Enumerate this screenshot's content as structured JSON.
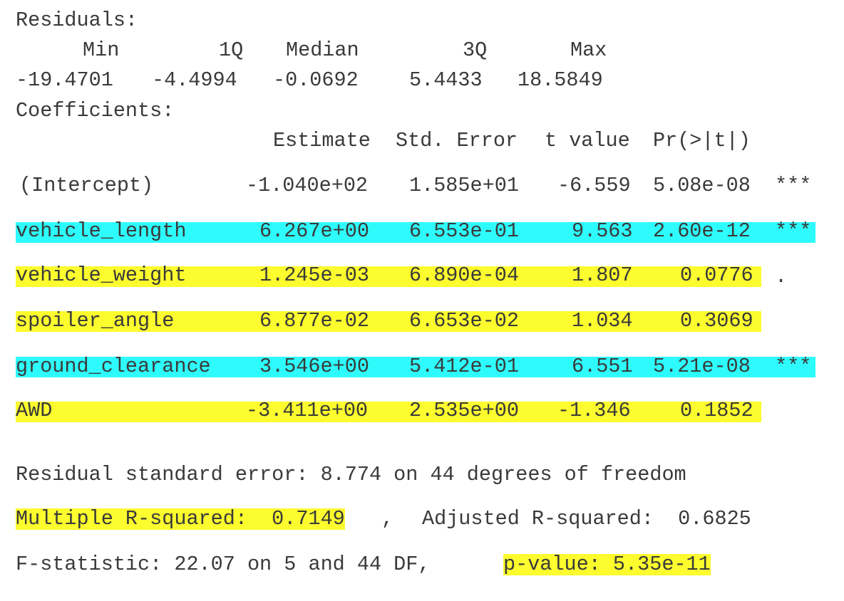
{
  "residuals": {
    "title": "Residuals:",
    "headers": [
      "Min",
      "1Q",
      "Median",
      "3Q",
      "Max"
    ],
    "values": [
      "-19.4701",
      "-4.4994",
      "-0.0692",
      "5.4433",
      "18.5849"
    ]
  },
  "coefficients": {
    "title": "Coefficients:",
    "headers": [
      "Estimate",
      "Std. Error",
      "t value",
      "Pr(>|t|)"
    ],
    "rows": [
      {
        "name": "(Intercept)",
        "estimate": "-1.040e+02",
        "std_error": "1.585e+01",
        "t_value": "-6.559",
        "p": "5.08e-08",
        "signif": "***",
        "highlight": "none"
      },
      {
        "name": "vehicle_length",
        "estimate": "6.267e+00",
        "std_error": "6.553e-01",
        "t_value": "9.563",
        "p": "2.60e-12",
        "signif": "***",
        "highlight": "cyan"
      },
      {
        "name": "vehicle_weight",
        "estimate": "1.245e-03",
        "std_error": "6.890e-04",
        "t_value": "1.807",
        "p": "0.0776",
        "signif": ".",
        "highlight": "yellow"
      },
      {
        "name": "spoiler_angle",
        "estimate": "6.877e-02",
        "std_error": "6.653e-02",
        "t_value": "1.034",
        "p": "0.3069",
        "signif": "",
        "highlight": "yellow"
      },
      {
        "name": "ground_clearance",
        "estimate": "3.546e+00",
        "std_error": "5.412e-01",
        "t_value": "6.551",
        "p": "5.21e-08",
        "signif": "***",
        "highlight": "cyan"
      },
      {
        "name": "AWD",
        "estimate": "-3.411e+00",
        "std_error": "2.535e+00",
        "t_value": "-1.346",
        "p": "0.1852",
        "signif": "",
        "highlight": "yellow"
      }
    ]
  },
  "summary": {
    "rse": "Residual standard error: 8.774 on 44 degrees of freedom",
    "multiple_r2": "Multiple R-squared:  0.7149",
    "comma": ",",
    "adjusted_r2": "Adjusted R-squared:  0.6825",
    "fstat": "F-statistic: 22.07 on 5 and 44 DF,",
    "pvalue": "p-value: 5.35e-11"
  },
  "colors": {
    "cyan": "#2efcfc",
    "yellow": "#fcfc2e",
    "text": "#3a3a3a"
  }
}
